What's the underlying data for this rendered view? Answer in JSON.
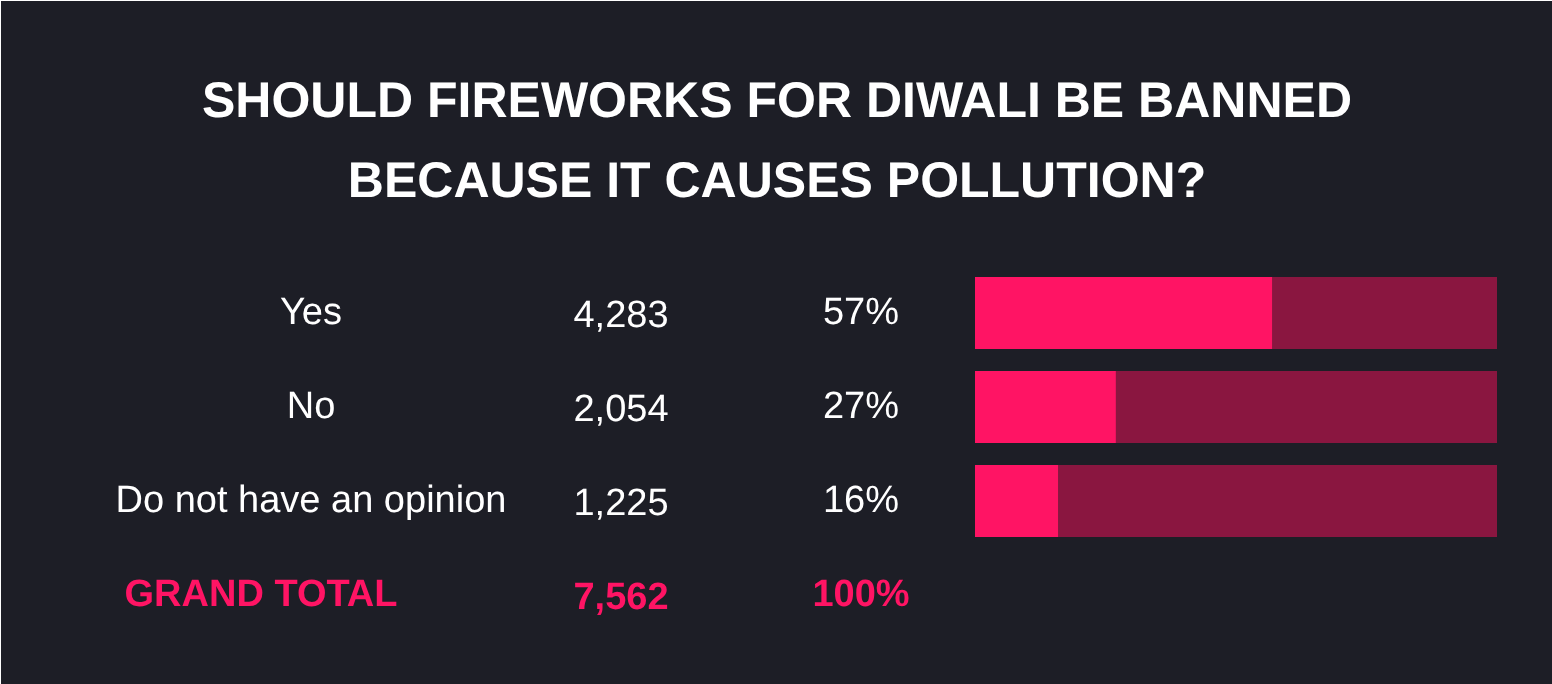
{
  "chart_data": {
    "type": "bar",
    "orientation": "horizontal",
    "stacked": true,
    "title": "SHOULD FIREWORKS FOR DIWALI BE BANNED BECAUSE IT CAUSES POLLUTION?",
    "categories": [
      "Yes",
      "No",
      "Do not have an opinion"
    ],
    "series": [
      {
        "color": "#ff1464",
        "values": [
          57,
          27,
          16
        ],
        "value_labels": [
          "57%",
          "27%",
          "16%"
        ]
      },
      {
        "color": "#8a1640",
        "values": [
          43,
          73,
          84
        ]
      }
    ],
    "xlim": [
      0,
      100
    ],
    "tick_labels": false,
    "grid": false,
    "annotations": [
      "4,283",
      "2,054",
      "1,225",
      "GRAND TOTAL",
      "7,562",
      "100%"
    ]
  }
}
